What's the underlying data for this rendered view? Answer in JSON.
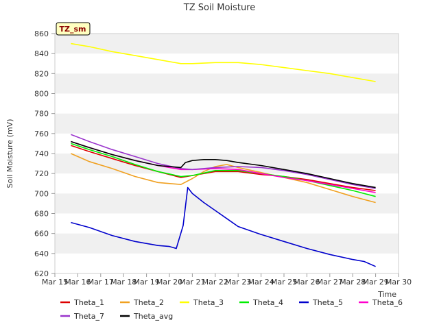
{
  "chart_data": {
    "type": "line",
    "title": "TZ Soil Moisture",
    "xlabel": "Time",
    "ylabel": "Soil Moisture (mV)",
    "tag": "TZ_sm",
    "x_ticks": [
      "Mar 15",
      "Mar 16",
      "Mar 17",
      "Mar 18",
      "Mar 19",
      "Mar 20",
      "Mar 21",
      "Mar 22",
      "Mar 23",
      "Mar 24",
      "Mar 25",
      "Mar 26",
      "Mar 27",
      "Mar 28",
      "Mar 29",
      "Mar 30"
    ],
    "xlim": [
      0,
      15
    ],
    "ylim": [
      620,
      860
    ],
    "y_ticks": [
      620,
      640,
      660,
      680,
      700,
      720,
      740,
      760,
      780,
      800,
      820,
      840,
      860
    ],
    "grid": "horizontal bands",
    "legend_position": "bottom",
    "series": [
      {
        "name": "Theta_1",
        "color": "#dd0000",
        "x": [
          0.7,
          1.5,
          2.5,
          3.5,
          4.5,
          5.5,
          6.0,
          7.0,
          8.0,
          9.0,
          10.0,
          11.0,
          12.0,
          13.0,
          14.0
        ],
        "y": [
          748,
          742,
          735,
          728,
          722,
          716,
          718,
          722,
          722,
          719,
          717,
          714,
          710,
          706,
          703
        ]
      },
      {
        "name": "Theta_2",
        "color": "#f0a020",
        "x": [
          0.7,
          1.5,
          2.5,
          3.5,
          4.5,
          5.5,
          6.0,
          6.5,
          7.0,
          7.5,
          8.0,
          9.0,
          10.0,
          11.0,
          12.0,
          13.0,
          14.0
        ],
        "y": [
          740,
          732,
          725,
          717,
          711,
          709,
          715,
          722,
          727,
          729,
          726,
          721,
          716,
          711,
          704,
          697,
          691
        ]
      },
      {
        "name": "Theta_3",
        "color": "#ffff00",
        "x": [
          0.7,
          1.5,
          2.5,
          3.5,
          4.5,
          5.5,
          6.0,
          7.0,
          8.0,
          9.0,
          10.0,
          11.0,
          12.0,
          13.0,
          14.0
        ],
        "y": [
          850,
          847,
          842,
          838,
          834,
          830,
          830,
          831,
          831,
          829,
          826,
          823,
          820,
          816,
          812
        ]
      },
      {
        "name": "Theta_4",
        "color": "#00ee00",
        "x": [
          0.7,
          1.5,
          2.5,
          3.5,
          4.5,
          5.5,
          6.0,
          7.0,
          8.0,
          9.0,
          10.0,
          11.0,
          12.0,
          13.0,
          14.0
        ],
        "y": [
          750,
          744,
          737,
          729,
          722,
          717,
          718,
          723,
          723,
          720,
          717,
          713,
          708,
          703,
          697
        ]
      },
      {
        "name": "Theta_5",
        "color": "#0000cc",
        "x": [
          0.7,
          1.5,
          2.5,
          3.5,
          4.5,
          5.0,
          5.3,
          5.6,
          5.8,
          6.0,
          6.5,
          7.0,
          7.5,
          8.0,
          9.0,
          10.0,
          11.0,
          12.0,
          13.0,
          13.5,
          14.0
        ],
        "y": [
          671,
          666,
          658,
          652,
          648,
          647,
          645,
          668,
          706,
          700,
          691,
          683,
          675,
          667,
          659,
          652,
          645,
          639,
          634,
          632,
          627
        ]
      },
      {
        "name": "Theta_6",
        "color": "#ff00cc",
        "x": [
          0.7,
          1.5,
          2.5,
          3.5,
          4.5,
          5.5,
          6.0,
          7.0,
          8.0,
          9.0,
          10.0,
          11.0,
          12.0,
          13.0,
          14.0
        ],
        "y": [
          752,
          746,
          739,
          733,
          728,
          724,
          724,
          725,
          724,
          720,
          716,
          713,
          709,
          705,
          701
        ]
      },
      {
        "name": "Theta_7",
        "color": "#9933cc",
        "x": [
          0.7,
          1.5,
          2.5,
          3.5,
          4.5,
          5.5,
          6.0,
          7.0,
          8.0,
          9.0,
          10.0,
          11.0,
          12.0,
          13.0,
          14.0
        ],
        "y": [
          759,
          752,
          744,
          737,
          730,
          725,
          724,
          726,
          727,
          726,
          723,
          719,
          714,
          709,
          705
        ]
      },
      {
        "name": "Theta_avg",
        "color": "#000000",
        "x": [
          0.7,
          1.5,
          2.5,
          3.5,
          4.5,
          5.5,
          5.7,
          6.0,
          6.5,
          7.0,
          7.5,
          8.0,
          9.0,
          10.0,
          11.0,
          12.0,
          13.0,
          14.0
        ],
        "y": [
          752,
          746,
          739,
          733,
          728,
          726,
          731,
          733,
          734,
          734,
          733,
          731,
          728,
          724,
          720,
          715,
          710,
          706
        ]
      }
    ]
  }
}
